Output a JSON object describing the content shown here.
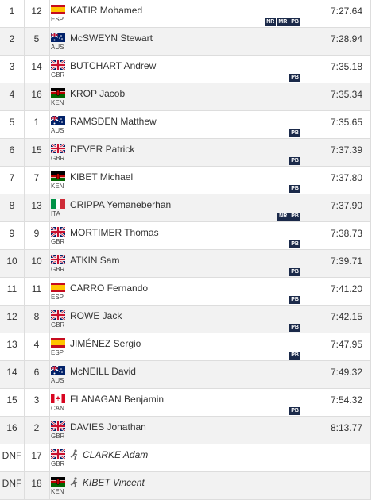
{
  "rows": [
    {
      "place": "1",
      "bib": "12",
      "name": "KATIR Mohamed",
      "country": "ESP",
      "time": "7:27.64",
      "badges": [
        "NR",
        "MR",
        "PB"
      ]
    },
    {
      "place": "2",
      "bib": "5",
      "name": "McSWEYN Stewart",
      "country": "AUS",
      "time": "7:28.94"
    },
    {
      "place": "3",
      "bib": "14",
      "name": "BUTCHART Andrew",
      "country": "GBR",
      "time": "7:35.18",
      "badges": [
        "PB"
      ]
    },
    {
      "place": "4",
      "bib": "16",
      "name": "KROP Jacob",
      "country": "KEN",
      "time": "7:35.34"
    },
    {
      "place": "5",
      "bib": "1",
      "name": "RAMSDEN Matthew",
      "country": "AUS",
      "time": "7:35.65",
      "badges": [
        "PB"
      ]
    },
    {
      "place": "6",
      "bib": "15",
      "name": "DEVER Patrick",
      "country": "GBR",
      "time": "7:37.39",
      "badges": [
        "PB"
      ]
    },
    {
      "place": "7",
      "bib": "7",
      "name": "KIBET Michael",
      "country": "KEN",
      "time": "7:37.80",
      "badges": [
        "PB"
      ]
    },
    {
      "place": "8",
      "bib": "13",
      "name": "CRIPPA Yemaneberhan",
      "country": "ITA",
      "time": "7:37.90",
      "badges": [
        "NR",
        "PB"
      ]
    },
    {
      "place": "9",
      "bib": "9",
      "name": "MORTIMER Thomas",
      "country": "GBR",
      "time": "7:38.73",
      "badges": [
        "PB"
      ]
    },
    {
      "place": "10",
      "bib": "10",
      "name": "ATKIN Sam",
      "country": "GBR",
      "time": "7:39.71",
      "badges": [
        "PB"
      ]
    },
    {
      "place": "11",
      "bib": "11",
      "name": "CARRO Fernando",
      "country": "ESP",
      "time": "7:41.20",
      "badges": [
        "PB"
      ]
    },
    {
      "place": "12",
      "bib": "8",
      "name": "ROWE Jack",
      "country": "GBR",
      "time": "7:42.15",
      "badges": [
        "PB"
      ]
    },
    {
      "place": "13",
      "bib": "4",
      "name": "JIMÉNEZ Sergio",
      "country": "ESP",
      "time": "7:47.95",
      "badges": [
        "PB"
      ]
    },
    {
      "place": "14",
      "bib": "6",
      "name": "McNEILL David",
      "country": "AUS",
      "time": "7:49.32"
    },
    {
      "place": "15",
      "bib": "3",
      "name": "FLANAGAN Benjamin",
      "country": "CAN",
      "time": "7:54.32",
      "badges": [
        "PB"
      ]
    },
    {
      "place": "16",
      "bib": "2",
      "name": "DAVIES Jonathan",
      "country": "GBR",
      "time": "8:13.77"
    },
    {
      "place": "DNF",
      "bib": "17",
      "name": "CLARKE Adam",
      "country": "GBR"
    },
    {
      "place": "DNF",
      "bib": "18",
      "name": "KIBET Vincent",
      "country": "KEN"
    }
  ]
}
